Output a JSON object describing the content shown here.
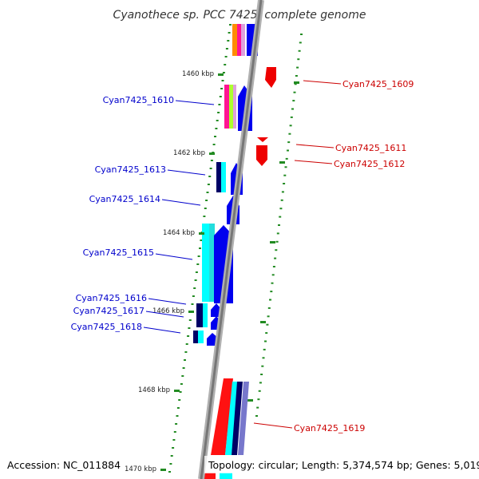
{
  "title": "Cyanothece sp. PCC 7425, complete genome",
  "accession": "Accession: NC_011884",
  "topology": "Topology: circular; Length: 5,374,574 bp; Genes: 5,019",
  "colors": {
    "backbone": "#8c8c8c",
    "tick": "#228b22",
    "label_blue": "#0000cc",
    "label_red": "#cc0000"
  },
  "kbp_labels": [
    {
      "text": "1460 kbp",
      "kbp": 1460
    },
    {
      "text": "1462 kbp",
      "kbp": 1462
    },
    {
      "text": "1464 kbp",
      "kbp": 1464
    },
    {
      "text": "1466 kbp",
      "kbp": 1466
    },
    {
      "text": "1468 kbp",
      "kbp": 1468
    },
    {
      "text": "1470 kbp",
      "kbp": 1470
    }
  ],
  "genes_left": [
    {
      "name": "Cyan7425_1610"
    },
    {
      "name": "Cyan7425_1613"
    },
    {
      "name": "Cyan7425_1614"
    },
    {
      "name": "Cyan7425_1615"
    },
    {
      "name": "Cyan7425_1616"
    },
    {
      "name": "Cyan7425_1617"
    },
    {
      "name": "Cyan7425_1618"
    }
  ],
  "genes_right": [
    {
      "name": "Cyan7425_1609"
    },
    {
      "name": "Cyan7425_1611"
    },
    {
      "name": "Cyan7425_1612"
    },
    {
      "name": "Cyan7425_1619"
    }
  ]
}
